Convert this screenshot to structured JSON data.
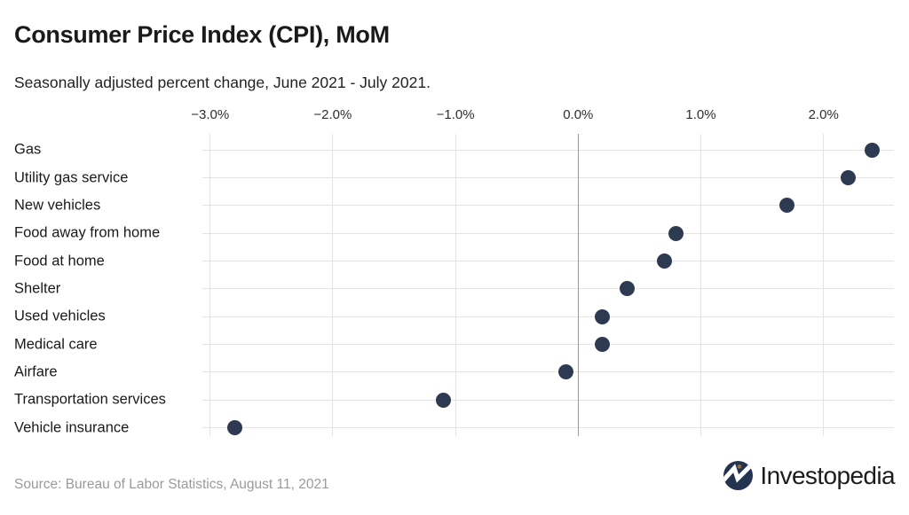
{
  "header": {
    "title": "Consumer Price Index (CPI), MoM",
    "subtitle": "Seasonally adjusted percent change, June 2021 - July 2021."
  },
  "chart_data": {
    "type": "scatter",
    "subtype": "horizontal-dot-plot",
    "title": "Consumer Price Index (CPI), MoM",
    "subtitle": "Seasonally adjusted percent change, June 2021 - July 2021.",
    "categories": [
      "Gas",
      "Utility gas service",
      "New vehicles",
      "Food away from home",
      "Food at home",
      "Shelter",
      "Used vehicles",
      "Medical care",
      "Airfare",
      "Transportation services",
      "Vehicle insurance"
    ],
    "values": [
      2.4,
      2.2,
      1.7,
      0.8,
      0.7,
      0.4,
      0.2,
      0.2,
      -0.1,
      -1.1,
      -2.8
    ],
    "unit": "percent",
    "x_ticks": [
      -3,
      -2,
      -1,
      0,
      1,
      2
    ],
    "x_tick_labels": [
      "−3.0%",
      "−2.0%",
      "−1.0%",
      "0.0%",
      "1.0%",
      "2.0%"
    ],
    "xlim": [
      -3.06,
      2.57
    ],
    "grid": true,
    "zero_line": true,
    "legend": "none",
    "colors": {
      "dot": "#2e3a52",
      "grid": "#e4e4e4",
      "zero_line": "#999999",
      "axis_text": "#2e2e2e",
      "category_text": "#1a1a1a"
    }
  },
  "footer": {
    "source": "Source: Bureau of Labor Statistics, August 11, 2021",
    "brand": "Investopedia"
  },
  "icons": {
    "logo_mark": "investopedia-circle-chart-icon",
    "logo_colors": {
      "circle": "#243350",
      "zigzag": "#ffffff",
      "dot": "#8f6f3e"
    }
  }
}
